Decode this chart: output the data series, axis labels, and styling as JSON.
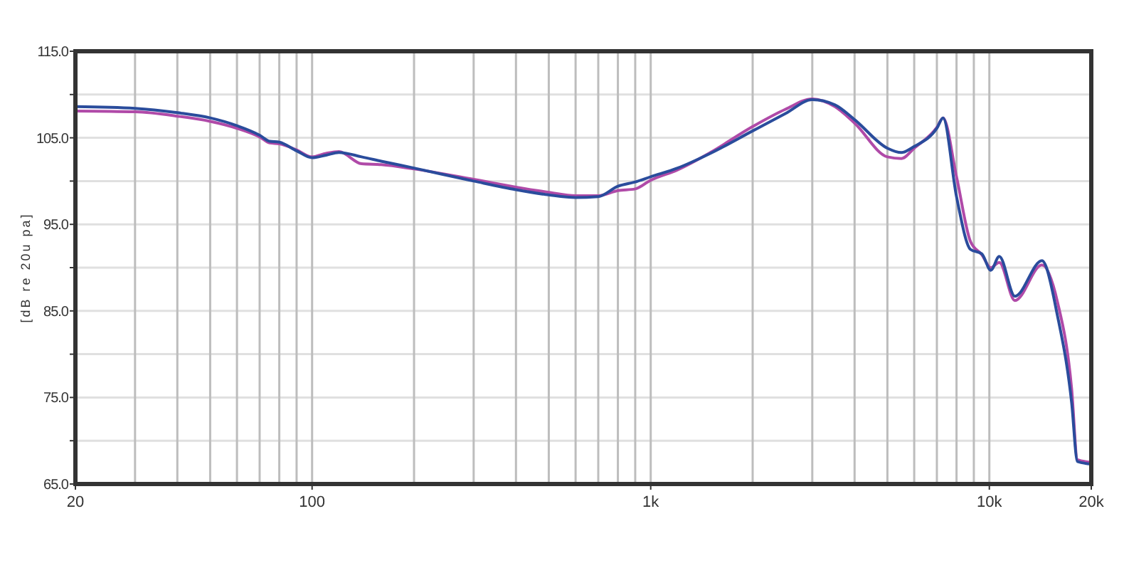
{
  "chart_data": {
    "type": "line",
    "ylabel": "[dB re 20u pa]",
    "log": "x",
    "grid": true,
    "marker": "none",
    "line_style": "solid",
    "xlim": [
      20,
      20000
    ],
    "ylim": [
      65,
      115
    ],
    "xticks": [
      20,
      {
        "value": 30,
        "label": null
      },
      {
        "value": 40,
        "label": null
      },
      {
        "value": 50,
        "label": null
      },
      {
        "value": 60,
        "label": null
      },
      {
        "value": 70,
        "label": null
      },
      {
        "value": 80,
        "label": null
      },
      {
        "value": 90,
        "label": null
      },
      100,
      {
        "value": 200,
        "label": null
      },
      {
        "value": 300,
        "label": null
      },
      {
        "value": 400,
        "label": null
      },
      {
        "value": 500,
        "label": null
      },
      {
        "value": 600,
        "label": null
      },
      {
        "value": 700,
        "label": null
      },
      {
        "value": 800,
        "label": null
      },
      {
        "value": 900,
        "label": null
      },
      {
        "value": 1000,
        "label": "1k"
      },
      {
        "value": 2000,
        "label": null
      },
      {
        "value": 3000,
        "label": null
      },
      {
        "value": 4000,
        "label": null
      },
      {
        "value": 5000,
        "label": null
      },
      {
        "value": 6000,
        "label": null
      },
      {
        "value": 7000,
        "label": null
      },
      {
        "value": 8000,
        "label": null
      },
      {
        "value": 9000,
        "label": null
      },
      {
        "value": 10000,
        "label": "10k"
      },
      {
        "value": 20000,
        "label": "20k"
      }
    ],
    "yticks": [
      {
        "value": 65,
        "label": "65.0"
      },
      {
        "value": 70,
        "label": null
      },
      {
        "value": 75,
        "label": "75.0"
      },
      {
        "value": 80,
        "label": null
      },
      {
        "value": 85,
        "label": "85.0"
      },
      {
        "value": 90,
        "label": null
      },
      {
        "value": 95,
        "label": "95.0"
      },
      {
        "value": 100,
        "label": null
      },
      {
        "value": 105,
        "label": "105.0"
      },
      {
        "value": 110,
        "label": null
      },
      {
        "value": 115,
        "label": "115.0"
      }
    ],
    "x": [
      20,
      30,
      40,
      50,
      60,
      70,
      75,
      80,
      90,
      100,
      110,
      120,
      140,
      160,
      200,
      300,
      400,
      500,
      600,
      700,
      800,
      900,
      1000,
      1200,
      1500,
      2000,
      2500,
      3000,
      3500,
      4000,
      5000,
      5500,
      6000,
      7000,
      7300,
      8000,
      8800,
      9500,
      10100,
      10700,
      11900,
      14300,
      15900,
      17500,
      18200,
      20000
    ],
    "series": [
      {
        "color": "#b04aa8",
        "values": [
          108.1,
          108.0,
          107.5,
          106.9,
          106.1,
          105.1,
          104.4,
          104.3,
          103.6,
          102.8,
          103.2,
          103.4,
          102.0,
          101.9,
          101.4,
          100.2,
          99.3,
          98.7,
          98.3,
          98.3,
          98.9,
          99.1,
          100.1,
          101.3,
          103.3,
          106.3,
          108.3,
          109.5,
          108.6,
          106.7,
          102.8,
          102.6,
          103.8,
          106.2,
          107.3,
          100.5,
          93.0,
          91.5,
          90.0,
          90.6,
          86.2,
          90.3,
          86.0,
          76.0,
          67.8,
          67.5
        ]
      },
      {
        "color": "#2a4c9c",
        "values": [
          108.6,
          108.4,
          107.9,
          107.3,
          106.4,
          105.3,
          104.6,
          104.5,
          103.5,
          102.7,
          103.0,
          103.3,
          102.8,
          102.3,
          101.5,
          100.0,
          99.0,
          98.4,
          98.1,
          98.2,
          99.4,
          99.9,
          100.5,
          101.5,
          103.2,
          105.8,
          107.8,
          109.4,
          108.8,
          107.1,
          103.8,
          103.3,
          104.0,
          106.1,
          107.3,
          98.2,
          92.1,
          91.6,
          89.7,
          91.3,
          86.7,
          90.8,
          84.4,
          74.4,
          67.6,
          67.3
        ]
      }
    ]
  }
}
